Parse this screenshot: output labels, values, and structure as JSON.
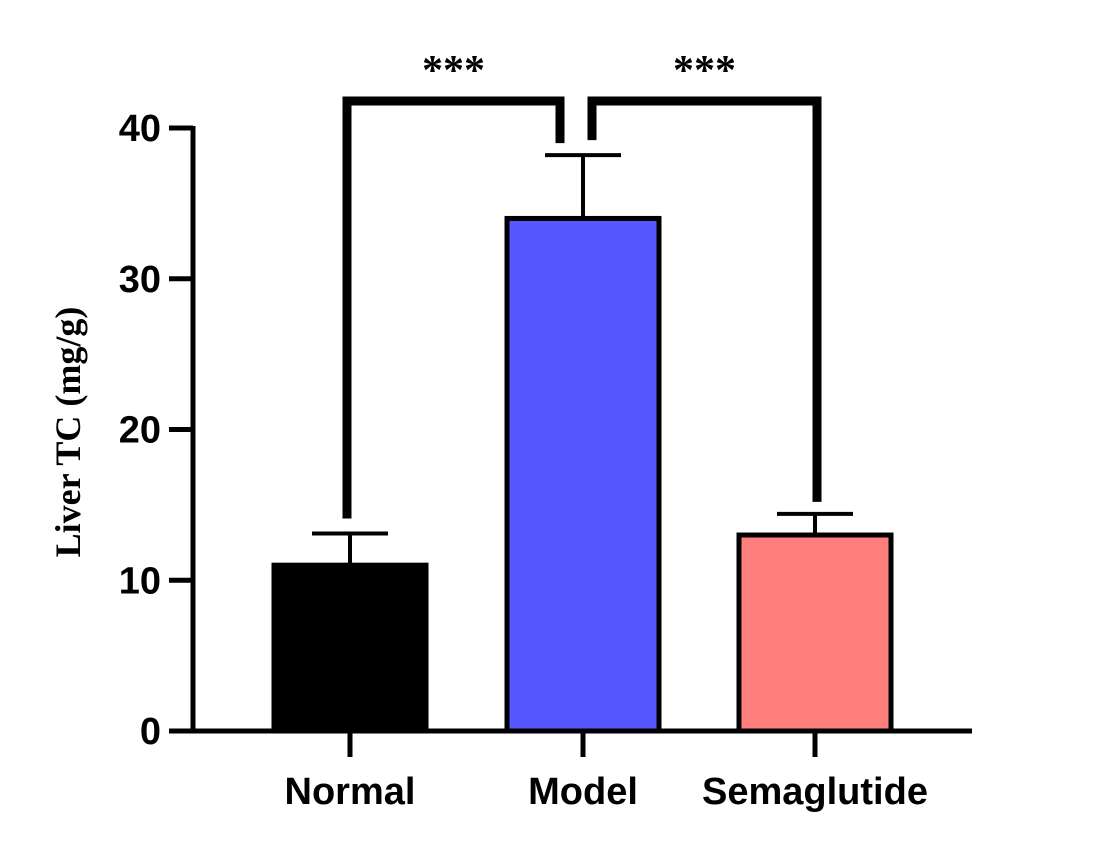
{
  "chart_data": {
    "type": "bar",
    "categories": [
      "Normal",
      "Model",
      "Semaglutide"
    ],
    "values": [
      11,
      34,
      13
    ],
    "errors": [
      2.1,
      4.2,
      1.4
    ],
    "colors": [
      "#000000",
      "#5757FF",
      "#FF7F7F"
    ],
    "ylabel": "Liver TC (mg/g)",
    "xlabel": "",
    "ylim": [
      0,
      40
    ],
    "yticks": [
      0,
      10,
      20,
      30,
      40
    ],
    "ytick_labels": [
      "0",
      "10",
      "20",
      "30",
      "40"
    ],
    "grid": false,
    "comparisons": [
      {
        "from": "Normal",
        "to": "Model",
        "label": "***"
      },
      {
        "from": "Model",
        "to": "Semaglutide",
        "label": "***"
      }
    ]
  }
}
